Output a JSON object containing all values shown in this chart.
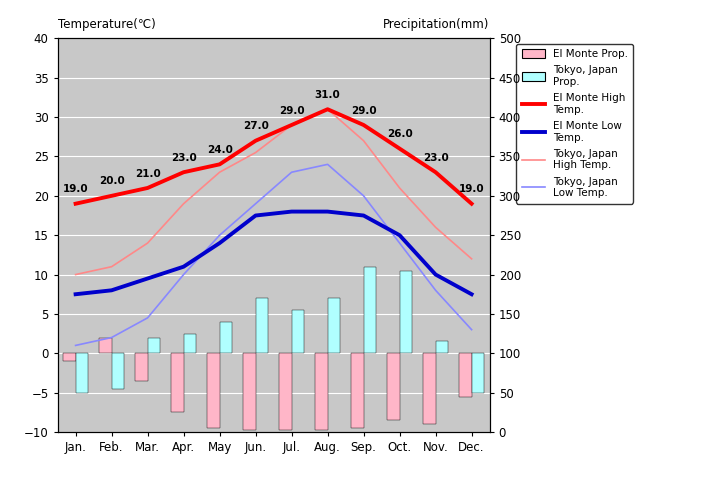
{
  "months": [
    "Jan.",
    "Feb.",
    "Mar.",
    "Apr.",
    "May",
    "Jun.",
    "Jul.",
    "Aug.",
    "Sep.",
    "Oct.",
    "Nov.",
    "Dec."
  ],
  "el_monte_high": [
    19.0,
    20.0,
    21.0,
    23.0,
    24.0,
    27.0,
    29.0,
    31.0,
    29.0,
    26.0,
    23.0,
    19.0
  ],
  "el_monte_low": [
    7.5,
    8.0,
    9.5,
    11.0,
    14.0,
    17.5,
    18.0,
    18.0,
    17.5,
    15.0,
    10.0,
    7.5
  ],
  "tokyo_high": [
    10.0,
    11.0,
    14.0,
    19.0,
    23.0,
    25.5,
    29.0,
    31.0,
    27.0,
    21.0,
    16.0,
    12.0
  ],
  "tokyo_low": [
    1.0,
    2.0,
    4.5,
    10.0,
    15.0,
    19.0,
    23.0,
    24.0,
    20.0,
    14.0,
    8.0,
    3.0
  ],
  "el_monte_precip_bar": [
    -1.0,
    2.0,
    -3.5,
    -7.5,
    -9.5,
    -9.8,
    -9.8,
    -9.8,
    -9.5,
    -8.5,
    -9.0,
    -5.5
  ],
  "tokyo_precip_bar": [
    -5.0,
    -4.5,
    2.0,
    2.5,
    4.0,
    7.0,
    5.5,
    7.0,
    11.0,
    10.5,
    1.5,
    -5.0
  ],
  "el_monte_high_color": "#FF0000",
  "el_monte_low_color": "#0000CC",
  "tokyo_high_color": "#FF8888",
  "tokyo_low_color": "#8888FF",
  "el_monte_precip_color": "#FFB6C8",
  "tokyo_precip_color": "#B0FFFF",
  "bg_color": "#C8C8C8",
  "white": "#FFFFFF",
  "title_left": "Temperature(℃)",
  "title_right": "Precipitation(mm)",
  "ylim_temp": [
    -10,
    40
  ],
  "ylim_precip": [
    0,
    500
  ],
  "temp_ticks": [
    -10,
    -5,
    0,
    5,
    10,
    15,
    20,
    25,
    30,
    35,
    40
  ],
  "precip_ticks": [
    0,
    50,
    100,
    150,
    200,
    250,
    300,
    350,
    400,
    450,
    500
  ],
  "legend_labels": [
    "El Monte Prop.",
    "Tokyo, Japan\nProp.",
    "El Monte High\nTemp.",
    "El Monte Low\nTemp.",
    "Tokyo, Japan\nHigh Temp.",
    "Tokyo, Japan\nLow Temp."
  ]
}
